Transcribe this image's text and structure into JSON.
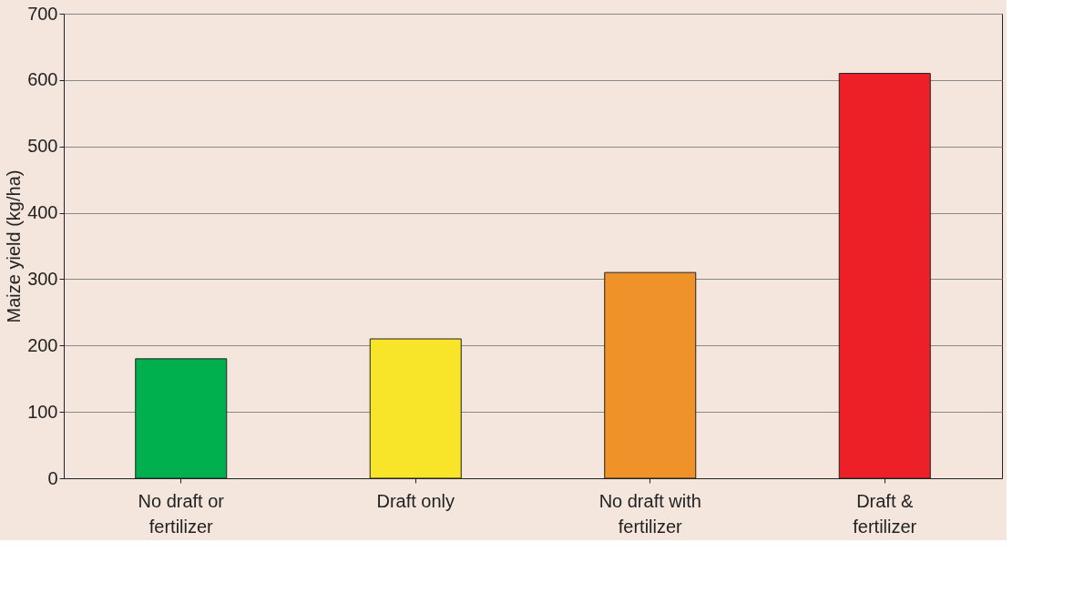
{
  "chart_data": {
    "type": "bar",
    "ylabel": "Maize yield (kg/ha)",
    "categories": [
      "No draft or fertilizer",
      "Draft only",
      "No draft with fertilizer",
      "Draft & fertilizer"
    ],
    "values": [
      180,
      210,
      310,
      610
    ],
    "colors": [
      "#00b04f",
      "#f8e52a",
      "#f0922a",
      "#ed2027"
    ],
    "ylim": [
      0,
      700
    ],
    "yticks": [
      0,
      100,
      200,
      300,
      400,
      500,
      600,
      700
    ],
    "grid": "y"
  }
}
